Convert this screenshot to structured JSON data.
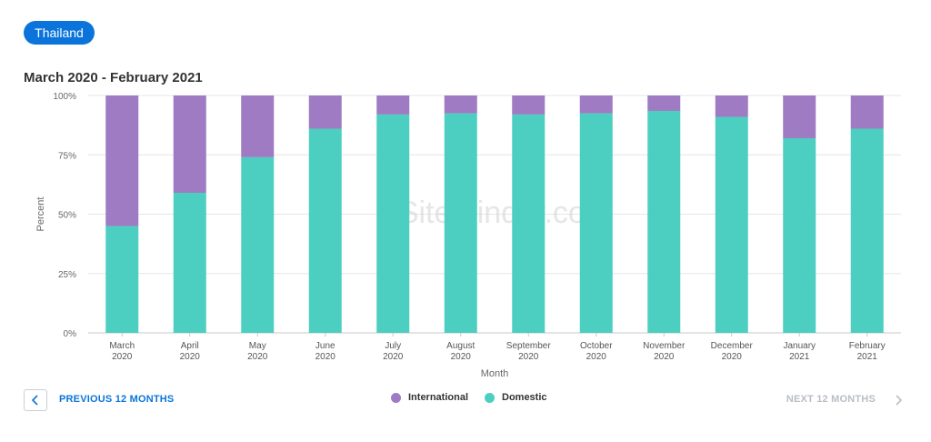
{
  "filter": {
    "country_label": "Thailand"
  },
  "header": {
    "title": "March 2020 - February 2021"
  },
  "navigation": {
    "prev_label": "PREVIOUS 12 MONTHS",
    "next_label": "NEXT 12 MONTHS"
  },
  "watermark": "SiteMinder.com",
  "colors": {
    "international": "#9e7bc2",
    "domestic": "#4ccfc0",
    "accent": "#0a74da"
  },
  "chart_data": {
    "type": "bar",
    "stacked": true,
    "title": "March 2020 - February 2021",
    "xlabel": "Month",
    "ylabel": "Percent",
    "ylim": [
      0,
      100
    ],
    "yticks": [
      "0%",
      "25%",
      "50%",
      "75%",
      "100%"
    ],
    "categories": [
      [
        "March",
        "2020"
      ],
      [
        "April",
        "2020"
      ],
      [
        "May",
        "2020"
      ],
      [
        "June",
        "2020"
      ],
      [
        "July",
        "2020"
      ],
      [
        "August",
        "2020"
      ],
      [
        "September",
        "2020"
      ],
      [
        "October",
        "2020"
      ],
      [
        "November",
        "2020"
      ],
      [
        "December",
        "2020"
      ],
      [
        "January",
        "2021"
      ],
      [
        "February",
        "2021"
      ]
    ],
    "series": [
      {
        "name": "Domestic",
        "values": [
          45,
          59,
          74,
          86,
          92,
          92.5,
          92,
          92.5,
          93.5,
          91,
          82,
          86
        ]
      },
      {
        "name": "International",
        "values": [
          55,
          41,
          26,
          14,
          8,
          7.5,
          8,
          7.5,
          6.5,
          9,
          18,
          14
        ]
      }
    ],
    "legend": [
      "International",
      "Domestic"
    ],
    "legend_position": "bottom",
    "grid": true
  }
}
